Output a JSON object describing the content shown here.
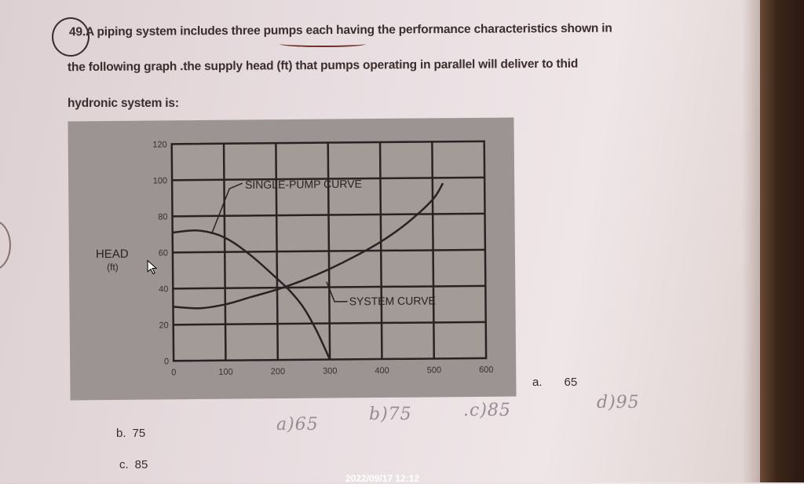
{
  "question": {
    "number": "49.",
    "line1": "A piping system includes three pumps each having the performance characteristics shown in",
    "line2": "the following graph .the supply head (ft) that pumps operating in parallel will deliver to thid",
    "line3": "hydronic system is:"
  },
  "options": [
    {
      "letter": "a.",
      "value": "65"
    },
    {
      "letter": "b.",
      "value": "75"
    },
    {
      "letter": "c.",
      "value": "85"
    }
  ],
  "handwriting": [
    "a)65",
    "b)75",
    ".c)85",
    "d)95"
  ],
  "timestamp": "2022/09/17 12:12",
  "chart_data": {
    "type": "line",
    "ylabel": "HEAD",
    "ylabel_unit": "(ft)",
    "xlim": [
      0,
      600
    ],
    "ylim": [
      0,
      120
    ],
    "xticks": [
      "0",
      "100",
      "200",
      "300",
      "400",
      "500",
      "600"
    ],
    "yticks": [
      "0",
      "20",
      "40",
      "60",
      "80",
      "100",
      "120"
    ],
    "grid": true,
    "series": [
      {
        "name": "SINGLE-PUMP CURVE",
        "x": [
          0,
          50,
          100,
          150,
          200,
          225,
          250,
          275,
          300
        ],
        "y": [
          71,
          72,
          68,
          58,
          45,
          38,
          29,
          16,
          0
        ]
      },
      {
        "name": "SYSTEM CURVE",
        "x": [
          0,
          50,
          100,
          150,
          200,
          250,
          300,
          350,
          400,
          450,
          500,
          520
        ],
        "y": [
          30,
          29,
          31,
          35,
          39,
          44,
          50,
          57,
          65,
          75,
          88,
          97
        ]
      }
    ],
    "colors": {
      "background": "#9c9492",
      "lines": "#2a2222"
    }
  }
}
